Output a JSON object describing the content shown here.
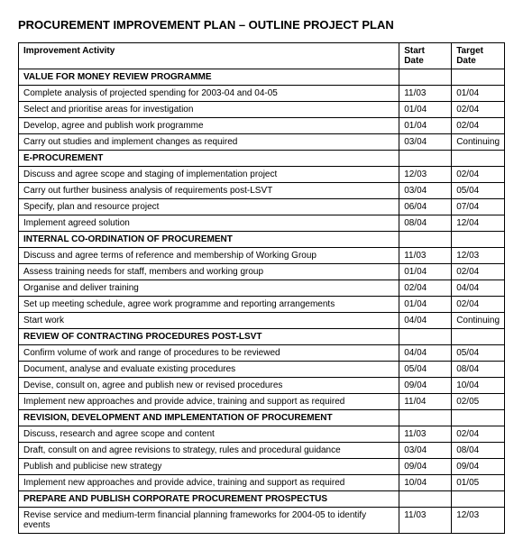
{
  "title": "PROCUREMENT IMPROVEMENT PLAN – OUTLINE PROJECT PLAN",
  "headers": {
    "activity": "Improvement Activity",
    "start": "Start Date",
    "target": "Target Date"
  },
  "sections": [
    {
      "name": "VALUE FOR MONEY REVIEW PROGRAMME",
      "rows": [
        {
          "activity": "Complete analysis of projected spending for 2003-04 and 04-05",
          "start": "11/03",
          "target": "01/04"
        },
        {
          "activity": "Select and prioritise areas for investigation",
          "start": "01/04",
          "target": "02/04"
        },
        {
          "activity": "Develop, agree and publish work programme",
          "start": "01/04",
          "target": "02/04"
        },
        {
          "activity": "Carry out studies and implement changes as required",
          "start": "03/04",
          "target": "Continuing"
        }
      ]
    },
    {
      "name": "E-PROCUREMENT",
      "rows": [
        {
          "activity": "Discuss and agree scope and staging of implementation project",
          "start": "12/03",
          "target": "02/04"
        },
        {
          "activity": "Carry out further business analysis of requirements post-LSVT",
          "start": "03/04",
          "target": "05/04"
        },
        {
          "activity": "Specify, plan and resource project",
          "start": "06/04",
          "target": "07/04"
        },
        {
          "activity": "Implement agreed solution",
          "start": "08/04",
          "target": "12/04"
        }
      ]
    },
    {
      "name": "INTERNAL CO-ORDINATION OF PROCUREMENT",
      "rows": [
        {
          "activity": "Discuss and agree terms of reference and membership of Working Group",
          "start": "11/03",
          "target": "12/03"
        },
        {
          "activity": "Assess training needs for staff, members and working group",
          "start": "01/04",
          "target": "02/04"
        },
        {
          "activity": "Organise and deliver training",
          "start": "02/04",
          "target": "04/04"
        },
        {
          "activity": "Set up meeting schedule, agree work programme and reporting arrangements",
          "start": "01/04",
          "target": "02/04"
        },
        {
          "activity": "Start work",
          "start": "04/04",
          "target": "Continuing"
        }
      ]
    },
    {
      "name": "REVIEW OF CONTRACTING PROCEDURES POST-LSVT",
      "rows": [
        {
          "activity": "Confirm volume of work and range of procedures to be reviewed",
          "start": "04/04",
          "target": "05/04"
        },
        {
          "activity": "Document, analyse and evaluate existing procedures",
          "start": "05/04",
          "target": "08/04"
        },
        {
          "activity": "Devise, consult on, agree and publish new or revised procedures",
          "start": "09/04",
          "target": "10/04"
        },
        {
          "activity": "Implement new approaches and provide advice, training and support as required",
          "start": "11/04",
          "target": "02/05"
        }
      ]
    },
    {
      "name": "REVISION, DEVELOPMENT AND IMPLEMENTATION OF PROCUREMENT",
      "rows": [
        {
          "activity": "Discuss, research and agree scope and content",
          "start": "11/03",
          "target": "02/04"
        },
        {
          "activity": "Draft, consult on and agree revisions to strategy, rules and procedural guidance",
          "start": "03/04",
          "target": "08/04"
        },
        {
          "activity": "Publish and publicise new strategy",
          "start": "09/04",
          "target": "09/04"
        },
        {
          "activity": "Implement new approaches and provide advice, training and support as required",
          "start": "10/04",
          "target": "01/05"
        }
      ]
    },
    {
      "name": "PREPARE AND PUBLISH CORPORATE PROCUREMENT PROSPECTUS",
      "rows": [
        {
          "activity": "Revise service and medium-term financial planning frameworks for 2004-05 to identify events",
          "start": "11/03",
          "target": "12/03"
        }
      ]
    }
  ]
}
